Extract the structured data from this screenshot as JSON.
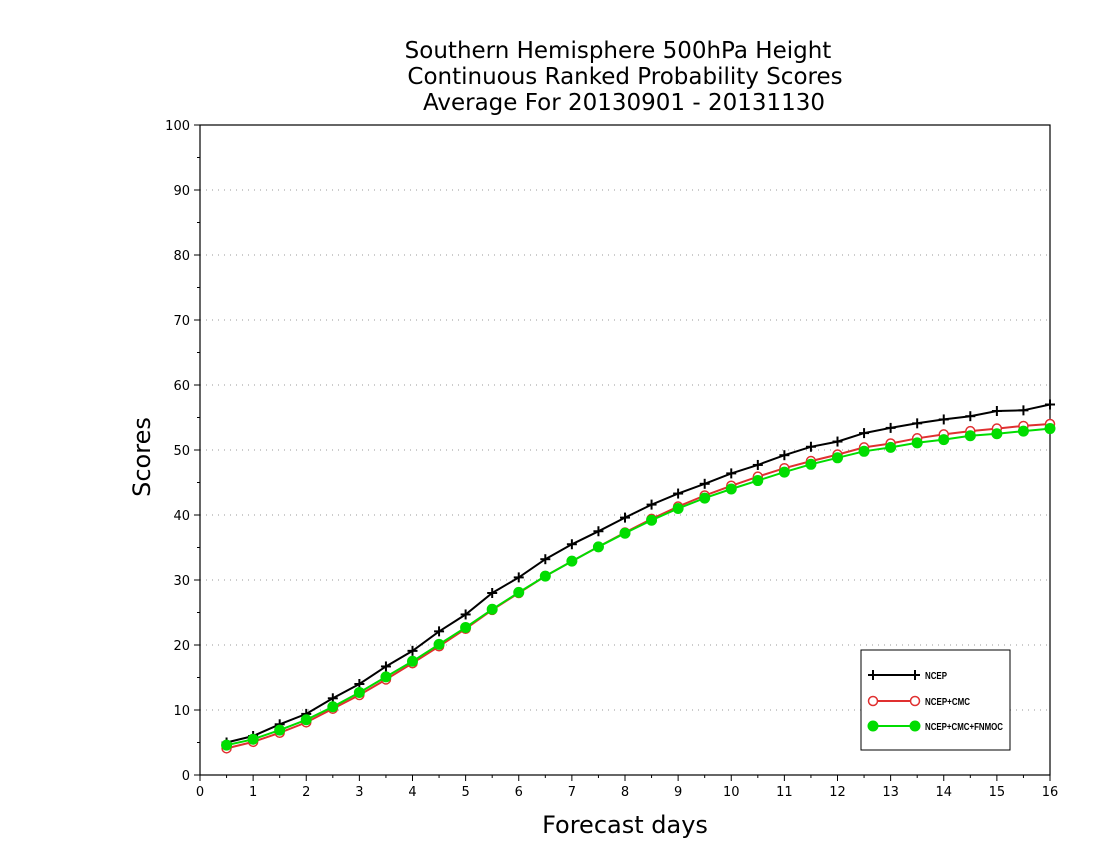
{
  "chart_data": {
    "type": "line",
    "title": [
      "Southern Hemisphere 500hPa Height",
      "Continuous Ranked Probability Scores",
      "Average For 20130901 - 20131130"
    ],
    "xlabel": "Forecast days",
    "ylabel": "Scores",
    "xlim": [
      0,
      16
    ],
    "ylim": [
      0,
      100
    ],
    "x_ticks": [
      0,
      1,
      2,
      3,
      4,
      5,
      6,
      7,
      8,
      9,
      10,
      11,
      12,
      13,
      14,
      15,
      16
    ],
    "y_ticks": [
      0,
      10,
      20,
      30,
      40,
      50,
      60,
      70,
      80,
      90,
      100
    ],
    "grid": "horizontal dotted",
    "legend_position": "bottom-right",
    "x": [
      0.5,
      1,
      1.5,
      2,
      2.5,
      3,
      3.5,
      4,
      4.5,
      5,
      5.5,
      6,
      6.5,
      7,
      7.5,
      8,
      8.5,
      9,
      9.5,
      10,
      10.5,
      11,
      11.5,
      12,
      12.5,
      13,
      13.5,
      14,
      14.5,
      15,
      15.5,
      16
    ],
    "series": [
      {
        "name": "NCEP",
        "color": "#000000",
        "marker": "plus",
        "values": [
          5.0,
          6.0,
          7.8,
          9.4,
          11.8,
          14.0,
          16.7,
          19.1,
          22.1,
          24.7,
          28.0,
          30.4,
          33.2,
          35.5,
          37.5,
          39.6,
          41.6,
          43.3,
          44.8,
          46.4,
          47.7,
          49.2,
          50.5,
          51.3,
          52.6,
          53.4,
          54.1,
          54.7,
          55.2,
          56.0,
          56.1,
          57.0
        ]
      },
      {
        "name": "NCEP+CMC",
        "color": "#e03030",
        "marker": "open-circle",
        "values": [
          4.1,
          5.1,
          6.5,
          8.1,
          10.2,
          12.3,
          14.7,
          17.2,
          19.8,
          22.5,
          25.4,
          28.0,
          30.6,
          32.9,
          35.1,
          37.3,
          39.4,
          41.3,
          43.0,
          44.5,
          45.9,
          47.2,
          48.3,
          49.3,
          50.4,
          51.0,
          51.8,
          52.4,
          52.9,
          53.3,
          53.7,
          54.0
        ]
      },
      {
        "name": "NCEP+CMC+FNMOC",
        "color": "#00dd00",
        "marker": "filled-circle",
        "values": [
          4.6,
          5.5,
          6.9,
          8.5,
          10.5,
          12.7,
          15.1,
          17.5,
          20.1,
          22.7,
          25.5,
          28.1,
          30.6,
          32.9,
          35.1,
          37.2,
          39.2,
          41.0,
          42.6,
          44.0,
          45.3,
          46.6,
          47.8,
          48.8,
          49.8,
          50.4,
          51.1,
          51.6,
          52.2,
          52.5,
          52.9,
          53.3
        ]
      }
    ]
  }
}
